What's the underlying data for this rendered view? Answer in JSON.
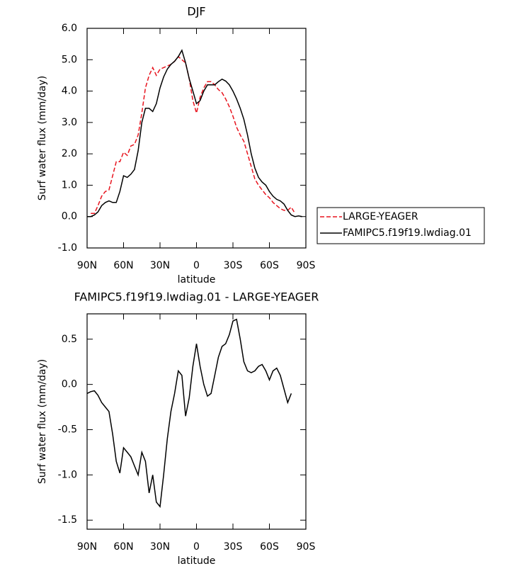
{
  "chart_data": [
    {
      "type": "line",
      "title": "DJF",
      "ylabel": "Surf water flux (mm/day)",
      "xlabel": "latitude",
      "x": [
        90,
        87,
        84,
        81,
        78,
        75,
        72,
        69,
        66,
        63,
        60,
        57,
        54,
        51,
        48,
        45,
        42,
        39,
        36,
        33,
        30,
        27,
        24,
        21,
        18,
        15,
        12,
        9,
        6,
        3,
        0,
        -3,
        -6,
        -9,
        -12,
        -15,
        -18,
        -21,
        -24,
        -27,
        -30,
        -33,
        -36,
        -39,
        -42,
        -45,
        -48,
        -51,
        -54,
        -57,
        -60,
        -63,
        -66,
        -69,
        -72,
        -75,
        -78,
        -81,
        -84,
        -87,
        -90
      ],
      "xlim": [
        90,
        -90
      ],
      "xticks": [
        {
          "value": 90,
          "label": "90N"
        },
        {
          "value": 60,
          "label": "60N"
        },
        {
          "value": 30,
          "label": "30N"
        },
        0,
        {
          "value": -30,
          "label": "30S"
        },
        {
          "value": -60,
          "label": "60S"
        },
        {
          "value": -90,
          "label": "90S"
        }
      ],
      "ylim": [
        -1,
        6
      ],
      "yticks": [
        {
          "value": -1,
          "label": "-1.0"
        },
        {
          "value": 0,
          "label": "0.0"
        },
        {
          "value": 1,
          "label": "1.0"
        },
        {
          "value": 2,
          "label": "2.0"
        },
        {
          "value": 3,
          "label": "3.0"
        },
        {
          "value": 4,
          "label": "4.0"
        },
        {
          "value": 5,
          "label": "5.0"
        },
        {
          "value": 6,
          "label": "6.0"
        }
      ],
      "legend": "right",
      "series": [
        {
          "name": "LARGE-YEAGER",
          "color": "#e8141e",
          "dashed": true,
          "values": [
            null,
            0.1,
            0.1,
            0.35,
            0.65,
            0.8,
            0.85,
            1.3,
            1.75,
            1.75,
            2.05,
            1.95,
            2.25,
            2.3,
            2.6,
            3.3,
            4.1,
            4.5,
            4.75,
            4.5,
            4.7,
            4.75,
            4.8,
            4.85,
            4.95,
            5.1,
            5.0,
            4.9,
            4.4,
            3.7,
            3.3,
            3.8,
            4.1,
            4.3,
            4.3,
            4.2,
            4.05,
            3.95,
            3.75,
            3.5,
            3.2,
            2.85,
            2.6,
            2.4,
            2.0,
            1.6,
            1.2,
            1.0,
            0.85,
            0.7,
            0.6,
            0.45,
            0.35,
            0.25,
            0.2,
            0.2,
            0.3,
            0.1,
            null,
            null,
            null
          ]
        },
        {
          "name": "FAMIPC5.f19f19.lwdiag.01",
          "color": "#000000",
          "dashed": false,
          "values": [
            0.0,
            0.0,
            0.05,
            0.15,
            0.35,
            0.45,
            0.5,
            0.45,
            0.45,
            0.8,
            1.3,
            1.25,
            1.35,
            1.5,
            2.1,
            3.0,
            3.45,
            3.45,
            3.35,
            3.6,
            4.1,
            4.45,
            4.7,
            4.85,
            4.95,
            5.1,
            5.3,
            4.9,
            4.4,
            4.0,
            3.6,
            3.7,
            4.0,
            4.2,
            4.2,
            4.2,
            4.3,
            4.38,
            4.32,
            4.2,
            4.0,
            3.75,
            3.45,
            3.1,
            2.6,
            2.0,
            1.55,
            1.25,
            1.1,
            1.0,
            0.8,
            0.65,
            0.55,
            0.5,
            0.4,
            0.2,
            0.05,
            0.0,
            0.02,
            0.0,
            null
          ]
        }
      ]
    },
    {
      "type": "line",
      "title": "FAMIPC5.f19f19.lwdiag.01 - LARGE-YEAGER",
      "ylabel": "Surf water flux (mm/day)",
      "xlabel": "latitude",
      "x": [
        90,
        87,
        84,
        81,
        78,
        75,
        72,
        69,
        66,
        63,
        60,
        57,
        54,
        51,
        48,
        45,
        42,
        39,
        36,
        33,
        30,
        27,
        24,
        21,
        18,
        15,
        12,
        9,
        6,
        3,
        0,
        -3,
        -6,
        -9,
        -12,
        -15,
        -18,
        -21,
        -24,
        -27,
        -30,
        -33,
        -36,
        -39,
        -42,
        -45,
        -48,
        -51,
        -54,
        -57,
        -60,
        -63,
        -66,
        -69,
        -72,
        -75,
        -78,
        -81,
        -84,
        -87,
        -90
      ],
      "xlim": [
        90,
        -90
      ],
      "xticks": [
        {
          "value": 90,
          "label": "90N"
        },
        {
          "value": 60,
          "label": "60N"
        },
        {
          "value": 30,
          "label": "30N"
        },
        0,
        {
          "value": -30,
          "label": "30S"
        },
        {
          "value": -60,
          "label": "60S"
        },
        {
          "value": -90,
          "label": "90S"
        }
      ],
      "ylim": [
        -1.6,
        0.78
      ],
      "yticks": [
        -1.5,
        {
          "value": -1,
          "label": "-1.0"
        },
        -0.5,
        {
          "value": 0,
          "label": "0.0"
        },
        0.5
      ],
      "series": [
        {
          "color": "#000000",
          "dashed": false,
          "values": [
            -0.1,
            -0.08,
            -0.07,
            -0.12,
            -0.2,
            -0.25,
            -0.3,
            -0.55,
            -0.85,
            -0.98,
            -0.7,
            -0.75,
            -0.8,
            -0.9,
            -1.0,
            -0.75,
            -0.85,
            -1.2,
            -1.0,
            -1.3,
            -1.35,
            -1.0,
            -0.6,
            -0.3,
            -0.1,
            0.15,
            0.1,
            -0.35,
            -0.15,
            0.2,
            0.45,
            0.2,
            0.0,
            -0.13,
            -0.1,
            0.1,
            0.3,
            0.42,
            0.45,
            0.55,
            0.7,
            0.72,
            0.5,
            0.25,
            0.15,
            0.13,
            0.15,
            0.2,
            0.22,
            0.15,
            0.05,
            0.15,
            0.18,
            0.1,
            -0.05,
            -0.2,
            -0.1,
            null,
            null,
            null,
            null
          ]
        }
      ]
    }
  ]
}
